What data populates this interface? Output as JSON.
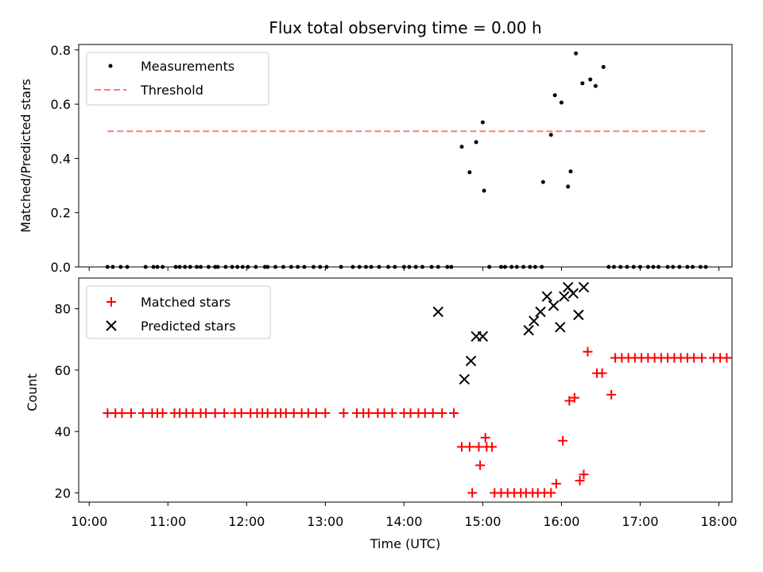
{
  "chart_data": [
    {
      "type": "scatter",
      "title": "Flux total observing time = 0.00 h",
      "ylabel": "Matched/Predicted stars",
      "xlim": [
        "09:52",
        "18:10"
      ],
      "ylim": [
        0,
        0.82
      ],
      "yticks": [
        "0.0",
        "0.2",
        "0.4",
        "0.6",
        "0.8"
      ],
      "legend": "top-left",
      "series": [
        {
          "name": "Measurements",
          "marker": "dot",
          "color": "#000000",
          "points": [
            [
              "10:14",
              0
            ],
            [
              "10:18",
              0
            ],
            [
              "10:24",
              0
            ],
            [
              "10:29",
              0
            ],
            [
              "10:43",
              0
            ],
            [
              "10:49",
              0
            ],
            [
              "10:52",
              0
            ],
            [
              "10:56",
              0
            ],
            [
              "11:06",
              0
            ],
            [
              "11:09",
              0
            ],
            [
              "11:13",
              0
            ],
            [
              "11:17",
              0
            ],
            [
              "11:22",
              0
            ],
            [
              "11:25",
              0
            ],
            [
              "11:31",
              0
            ],
            [
              "11:36",
              0
            ],
            [
              "11:38",
              0
            ],
            [
              "11:44",
              0
            ],
            [
              "11:49",
              0
            ],
            [
              "11:53",
              0
            ],
            [
              "11:57",
              0
            ],
            [
              "12:01",
              0
            ],
            [
              "12:07",
              0
            ],
            [
              "12:14",
              0
            ],
            [
              "12:16",
              0
            ],
            [
              "12:22",
              0
            ],
            [
              "12:28",
              0
            ],
            [
              "12:34",
              0
            ],
            [
              "12:39",
              0
            ],
            [
              "12:44",
              0
            ],
            [
              "12:51",
              0
            ],
            [
              "12:56",
              0
            ],
            [
              "13:01",
              0
            ],
            [
              "13:12",
              0
            ],
            [
              "13:21",
              0
            ],
            [
              "13:26",
              0
            ],
            [
              "13:31",
              0
            ],
            [
              "13:35",
              0
            ],
            [
              "13:41",
              0
            ],
            [
              "13:48",
              0
            ],
            [
              "13:53",
              0
            ],
            [
              "14:00",
              0
            ],
            [
              "14:04",
              0
            ],
            [
              "14:09",
              0
            ],
            [
              "14:14",
              0
            ],
            [
              "14:21",
              0
            ],
            [
              "14:26",
              0
            ],
            [
              "14:33",
              0
            ],
            [
              "14:36",
              0
            ],
            [
              "14:44",
              0.443
            ],
            [
              "14:50",
              0.349
            ],
            [
              "14:55",
              0.46
            ],
            [
              "15:00",
              0.533
            ],
            [
              "15:01",
              0.281
            ],
            [
              "15:05",
              0
            ],
            [
              "15:14",
              0
            ],
            [
              "15:17",
              0
            ],
            [
              "15:22",
              0
            ],
            [
              "15:26",
              0
            ],
            [
              "15:31",
              0
            ],
            [
              "15:36",
              0
            ],
            [
              "15:40",
              0
            ],
            [
              "15:45",
              0
            ],
            [
              "15:46",
              0.313
            ],
            [
              "15:52",
              0.487
            ],
            [
              "15:55",
              0.633
            ],
            [
              "16:00",
              0.606
            ],
            [
              "16:05",
              0.296
            ],
            [
              "16:07",
              0.352
            ],
            [
              "16:11",
              0.787
            ],
            [
              "16:16",
              0.677
            ],
            [
              "16:22",
              0.691
            ],
            [
              "16:26",
              0.667
            ],
            [
              "16:32",
              0.737
            ],
            [
              "16:36",
              0
            ],
            [
              "16:40",
              0
            ],
            [
              "16:45",
              0
            ],
            [
              "16:50",
              0
            ],
            [
              "16:55",
              0
            ],
            [
              "17:00",
              0
            ],
            [
              "17:06",
              0
            ],
            [
              "17:10",
              0
            ],
            [
              "17:14",
              0
            ],
            [
              "17:21",
              0
            ],
            [
              "17:25",
              0
            ],
            [
              "17:30",
              0
            ],
            [
              "17:36",
              0
            ],
            [
              "17:40",
              0
            ],
            [
              "17:46",
              0
            ],
            [
              "17:50",
              0
            ]
          ]
        },
        {
          "name": "Threshold",
          "marker": "dashed-line",
          "color": "#ff7a7a",
          "x_range": [
            "10:14",
            "17:52"
          ],
          "value": 0.5
        }
      ]
    },
    {
      "type": "scatter",
      "ylabel": "Count",
      "xlabel": "Time (UTC)",
      "xlim": [
        "09:52",
        "18:10"
      ],
      "ylim": [
        17,
        90
      ],
      "yticks": [
        "20",
        "40",
        "60",
        "80"
      ],
      "xticks": [
        "10:00",
        "11:00",
        "12:00",
        "13:00",
        "14:00",
        "15:00",
        "16:00",
        "17:00",
        "18:00"
      ],
      "legend": "top-left",
      "series": [
        {
          "name": "Matched stars",
          "marker": "plus",
          "color": "#ff0000",
          "points": [
            [
              "10:14",
              46
            ],
            [
              "10:20",
              46
            ],
            [
              "10:25",
              46
            ],
            [
              "10:32",
              46
            ],
            [
              "10:41",
              46
            ],
            [
              "10:48",
              46
            ],
            [
              "10:52",
              46
            ],
            [
              "10:56",
              46
            ],
            [
              "11:05",
              46
            ],
            [
              "11:09",
              46
            ],
            [
              "11:14",
              46
            ],
            [
              "11:19",
              46
            ],
            [
              "11:25",
              46
            ],
            [
              "11:29",
              46
            ],
            [
              "11:36",
              46
            ],
            [
              "11:43",
              46
            ],
            [
              "11:51",
              46
            ],
            [
              "11:56",
              46
            ],
            [
              "12:03",
              46
            ],
            [
              "12:08",
              46
            ],
            [
              "12:12",
              46
            ],
            [
              "12:16",
              46
            ],
            [
              "12:22",
              46
            ],
            [
              "12:26",
              46
            ],
            [
              "12:30",
              46
            ],
            [
              "12:36",
              46
            ],
            [
              "12:42",
              46
            ],
            [
              "12:47",
              46
            ],
            [
              "12:53",
              46
            ],
            [
              "13:00",
              46
            ],
            [
              "13:14",
              46
            ],
            [
              "13:24",
              46
            ],
            [
              "13:29",
              46
            ],
            [
              "13:33",
              46
            ],
            [
              "13:40",
              46
            ],
            [
              "13:45",
              46
            ],
            [
              "13:51",
              46
            ],
            [
              "14:00",
              46
            ],
            [
              "14:05",
              46
            ],
            [
              "14:11",
              46
            ],
            [
              "14:16",
              46
            ],
            [
              "14:22",
              46
            ],
            [
              "14:29",
              46
            ],
            [
              "14:38",
              46
            ],
            [
              "14:44",
              35
            ],
            [
              "14:50",
              35
            ],
            [
              "14:57",
              35
            ],
            [
              "15:03",
              35
            ],
            [
              "15:07",
              35
            ],
            [
              "14:52",
              20
            ],
            [
              "14:58",
              29
            ],
            [
              "15:02",
              38
            ],
            [
              "15:09",
              20
            ],
            [
              "15:14",
              20
            ],
            [
              "15:19",
              20
            ],
            [
              "15:24",
              20
            ],
            [
              "15:29",
              20
            ],
            [
              "15:33",
              20
            ],
            [
              "15:38",
              20
            ],
            [
              "15:42",
              20
            ],
            [
              "15:47",
              20
            ],
            [
              "15:52",
              20
            ],
            [
              "15:56",
              23
            ],
            [
              "16:01",
              37
            ],
            [
              "16:06",
              50
            ],
            [
              "16:10",
              51
            ],
            [
              "16:14",
              24
            ],
            [
              "16:17",
              26
            ],
            [
              "16:20",
              66
            ],
            [
              "16:27",
              59
            ],
            [
              "16:31",
              59
            ],
            [
              "16:38",
              52
            ],
            [
              "16:41",
              64
            ],
            [
              "16:46",
              64
            ],
            [
              "16:51",
              64
            ],
            [
              "16:56",
              64
            ],
            [
              "17:01",
              64
            ],
            [
              "17:06",
              64
            ],
            [
              "17:11",
              64
            ],
            [
              "17:16",
              64
            ],
            [
              "17:21",
              64
            ],
            [
              "17:26",
              64
            ],
            [
              "17:31",
              64
            ],
            [
              "17:36",
              64
            ],
            [
              "17:41",
              64
            ],
            [
              "17:47",
              64
            ],
            [
              "17:56",
              64
            ],
            [
              "18:01",
              64
            ],
            [
              "18:06",
              64
            ]
          ]
        },
        {
          "name": "Predicted stars",
          "marker": "x",
          "color": "#000000",
          "points": [
            [
              "14:26",
              79
            ],
            [
              "14:46",
              57
            ],
            [
              "14:51",
              63
            ],
            [
              "14:55",
              71
            ],
            [
              "15:00",
              71
            ],
            [
              "15:35",
              73
            ],
            [
              "15:39",
              76
            ],
            [
              "15:44",
              79
            ],
            [
              "15:49",
              84
            ],
            [
              "15:54",
              81
            ],
            [
              "15:59",
              74
            ],
            [
              "16:02",
              84
            ],
            [
              "16:05",
              87
            ],
            [
              "16:09",
              85
            ],
            [
              "16:13",
              78
            ],
            [
              "16:17",
              87
            ]
          ]
        }
      ]
    }
  ]
}
